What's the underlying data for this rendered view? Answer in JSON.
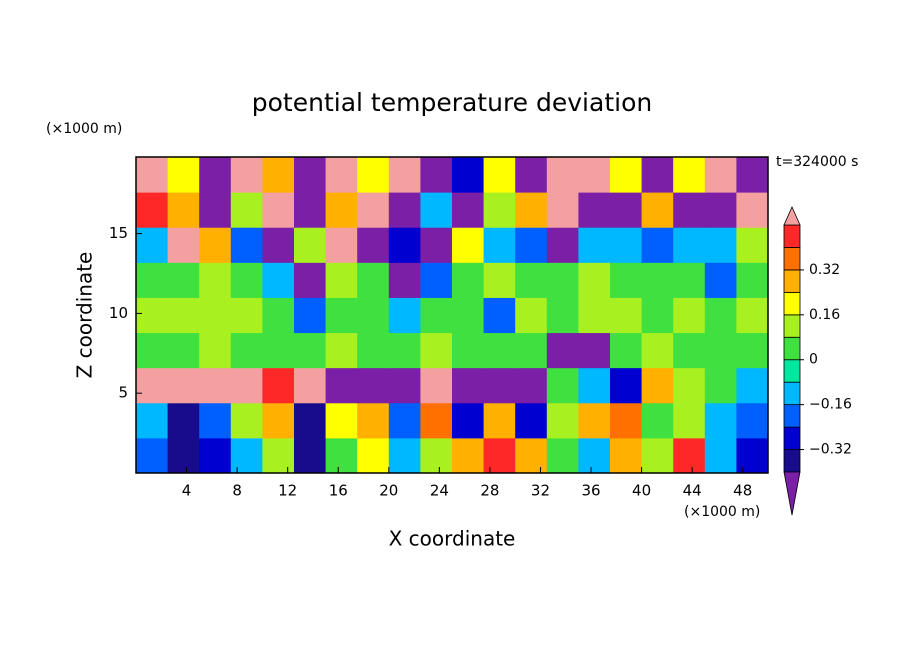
{
  "chart_data": {
    "type": "contour",
    "title": "potential temperature deviation",
    "y_unit": "(×1000 m)",
    "x_unit": "(×1000 m)",
    "time_label": "t=324000 s",
    "xlabel": "X coordinate",
    "ylabel": "Z coordinate",
    "xlim": [
      0,
      50
    ],
    "ylim": [
      0,
      19.8
    ],
    "xticks": [
      4,
      8,
      12,
      16,
      20,
      24,
      28,
      32,
      36,
      40,
      44,
      48
    ],
    "yticks": [
      5,
      10,
      15
    ],
    "x": [
      1.25,
      3.75,
      6.25,
      8.75,
      11.25,
      13.75,
      16.25,
      18.75,
      21.25,
      23.75,
      26.25,
      28.75,
      31.25,
      33.75,
      36.25,
      38.75,
      41.25,
      43.75,
      46.25,
      48.75
    ],
    "y": [
      1.1,
      3.3,
      5.5,
      7.7,
      9.9,
      12.1,
      14.3,
      16.5,
      18.7
    ],
    "z": [
      [
        -0.2,
        -0.36,
        -0.3,
        -0.1,
        0.1,
        -0.4,
        0.05,
        0.2,
        -0.1,
        0.1,
        0.25,
        0.45,
        0.3,
        0.05,
        -0.1,
        0.3,
        0.1,
        0.45,
        -0.1,
        -0.25
      ],
      [
        -0.1,
        -0.35,
        -0.2,
        0.1,
        0.3,
        -0.4,
        0.2,
        0.3,
        -0.2,
        0.35,
        -0.3,
        0.3,
        -0.3,
        0.1,
        0.25,
        0.35,
        0.05,
        0.1,
        -0.1,
        -0.2
      ],
      [
        0.5,
        0.5,
        0.5,
        0.5,
        0.45,
        0.5,
        -0.45,
        -0.45,
        -0.45,
        0.5,
        -0.45,
        -0.45,
        -0.45,
        0.0,
        -0.1,
        -0.3,
        0.3,
        0.1,
        0.0,
        -0.1
      ],
      [
        0.05,
        0.0,
        0.1,
        0.05,
        0.05,
        0.0,
        0.1,
        0.0,
        0.05,
        0.1,
        0.0,
        0.05,
        0.0,
        -0.45,
        -0.45,
        0.0,
        0.1,
        0.05,
        0.0,
        0.05
      ],
      [
        0.08,
        0.08,
        0.08,
        0.08,
        0.05,
        -0.2,
        0.0,
        0.05,
        -0.1,
        0.0,
        0.05,
        -0.2,
        0.08,
        0.05,
        0.08,
        0.08,
        0.05,
        0.08,
        0.05,
        0.08
      ],
      [
        0.0,
        0.05,
        0.1,
        0.05,
        -0.1,
        -0.45,
        0.1,
        0.0,
        -0.45,
        -0.2,
        0.05,
        0.1,
        0.0,
        0.05,
        0.1,
        0.05,
        0.0,
        0.05,
        -0.2,
        0.0
      ],
      [
        -0.15,
        0.5,
        0.3,
        -0.2,
        -0.45,
        0.1,
        0.5,
        -0.45,
        -0.3,
        -0.45,
        0.2,
        -0.1,
        -0.2,
        -0.45,
        -0.1,
        -0.15,
        -0.2,
        -0.15,
        -0.1,
        0.1
      ],
      [
        0.4,
        0.3,
        -0.45,
        0.1,
        0.5,
        -0.45,
        0.3,
        0.5,
        -0.45,
        -0.1,
        -0.45,
        0.1,
        0.3,
        0.5,
        -0.45,
        -0.45,
        0.3,
        -0.45,
        -0.45,
        0.5
      ],
      [
        0.5,
        0.2,
        -0.45,
        0.5,
        0.3,
        -0.45,
        0.5,
        0.2,
        0.5,
        -0.45,
        -0.3,
        0.2,
        -0.45,
        0.5,
        0.5,
        0.2,
        -0.45,
        0.2,
        0.5,
        -0.45
      ]
    ],
    "colorbar": {
      "levels": [
        -0.4,
        -0.32,
        -0.24,
        -0.16,
        -0.08,
        0,
        0.08,
        0.16,
        0.24,
        0.32,
        0.4,
        0.48
      ],
      "colors": [
        "#7a1fa6",
        "#160c8c",
        "#0000d0",
        "#0060ff",
        "#00b8ff",
        "#00e8a0",
        "#40e040",
        "#a8f020",
        "#ffff00",
        "#ffb000",
        "#ff7000",
        "#ff2828",
        "#f4a0a0"
      ],
      "ticks": [
        {
          "value": -0.32,
          "label": "−0.32"
        },
        {
          "value": -0.16,
          "label": "−0.16"
        },
        0,
        0.16,
        0.32
      ]
    }
  }
}
